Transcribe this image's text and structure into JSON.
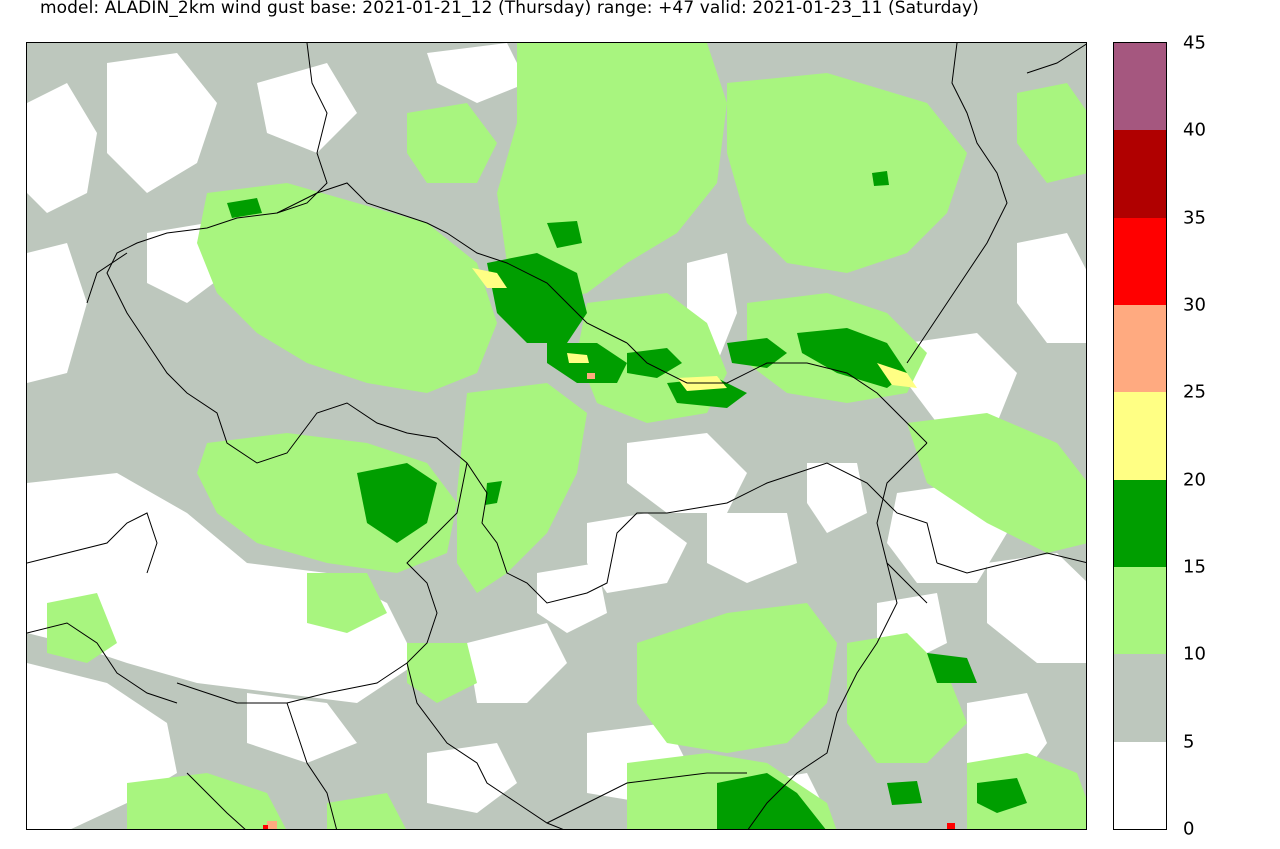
{
  "header": {
    "title": "model: ALADIN_2km wind gust  base:  2021-01-21_12 (Thursday) range: +47 valid: 2021-01-23_11 (Saturday)"
  },
  "legend": {
    "ticks": [
      "45",
      "40",
      "35",
      "30",
      "25",
      "20",
      "15",
      "10",
      "5",
      "0"
    ],
    "bands": [
      {
        "from": 0,
        "to": 5,
        "color": "#ffffff"
      },
      {
        "from": 5,
        "to": 10,
        "color": "#bdc7bd"
      },
      {
        "from": 10,
        "to": 15,
        "color": "#a8f57f"
      },
      {
        "from": 15,
        "to": 20,
        "color": "#009e00"
      },
      {
        "from": 20,
        "to": 25,
        "color": "#ffff84"
      },
      {
        "from": 25,
        "to": 30,
        "color": "#ffaa80"
      },
      {
        "from": 30,
        "to": 35,
        "color": "#ff0000"
      },
      {
        "from": 35,
        "to": 40,
        "color": "#b00000"
      },
      {
        "from": 40,
        "to": 45,
        "color": "#a5577f"
      }
    ]
  }
}
